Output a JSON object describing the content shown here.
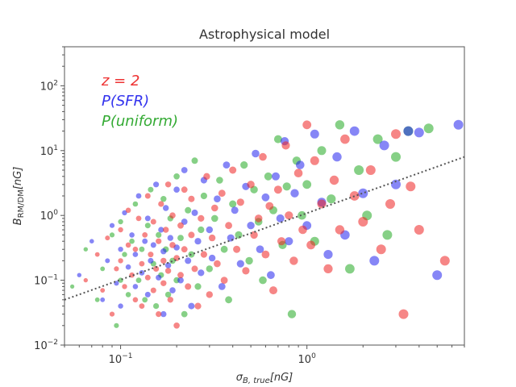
{
  "chart_data": {
    "type": "scatter",
    "title": "Astrophysical model",
    "xlabel_main": "σ",
    "xlabel_sub": "B, true",
    "xlabel_unit": "[nG]",
    "ylabel_main": "B",
    "ylabel_sub": "RM/DM",
    "ylabel_unit": "[nG]",
    "xscale": "log",
    "yscale": "log",
    "xlim": [
      0.05,
      7.0
    ],
    "ylim": [
      0.01,
      400
    ],
    "x_ticks": [
      {
        "value": 0.1,
        "base": "10",
        "exp": "−1"
      },
      {
        "value": 1,
        "base": "10",
        "exp": "0"
      }
    ],
    "y_ticks": [
      {
        "value": 0.01,
        "base": "10",
        "exp": "−2"
      },
      {
        "value": 0.1,
        "base": "10",
        "exp": "−1"
      },
      {
        "value": 1,
        "base": "10",
        "exp": "0"
      },
      {
        "value": 10,
        "base": "10",
        "exp": "1"
      },
      {
        "value": 100,
        "base": "10",
        "exp": "2"
      }
    ],
    "legend_placement": "top-left",
    "legend": [
      {
        "text": "z = 2",
        "color": "#ee3333"
      },
      {
        "text": "P(SFR)",
        "color": "#3333ee"
      },
      {
        "text": "P(uniform)",
        "color": "#33aa33"
      }
    ],
    "reference_line": {
      "style": "dotted",
      "color": "#555555",
      "points": [
        [
          0.05,
          0.05
        ],
        [
          7.0,
          8.0
        ]
      ]
    },
    "series": [
      {
        "color": "#ee2222",
        "points": [
          [
            0.065,
            0.1
          ],
          [
            0.075,
            0.25
          ],
          [
            0.08,
            0.07
          ],
          [
            0.085,
            0.45
          ],
          [
            0.09,
            0.03
          ],
          [
            0.095,
            0.15
          ],
          [
            0.1,
            0.6
          ],
          [
            0.1,
            0.2
          ],
          [
            0.105,
            0.08
          ],
          [
            0.11,
            0.35
          ],
          [
            0.11,
            1.2
          ],
          [
            0.115,
            0.12
          ],
          [
            0.12,
            0.05
          ],
          [
            0.12,
            0.3
          ],
          [
            0.125,
            0.9
          ],
          [
            0.13,
            0.18
          ],
          [
            0.13,
            0.04
          ],
          [
            0.135,
            0.5
          ],
          [
            0.14,
            0.11
          ],
          [
            0.14,
            2.0
          ],
          [
            0.145,
            0.25
          ],
          [
            0.15,
            0.07
          ],
          [
            0.15,
            0.8
          ],
          [
            0.155,
            0.15
          ],
          [
            0.16,
            0.4
          ],
          [
            0.16,
            0.03
          ],
          [
            0.165,
            1.5
          ],
          [
            0.17,
            0.2
          ],
          [
            0.17,
            0.09
          ],
          [
            0.175,
            0.6
          ],
          [
            0.18,
            3.0
          ],
          [
            0.18,
            0.14
          ],
          [
            0.185,
            0.05
          ],
          [
            0.19,
            0.35
          ],
          [
            0.19,
            1.0
          ],
          [
            0.2,
            0.22
          ],
          [
            0.2,
            0.02
          ],
          [
            0.21,
            0.7
          ],
          [
            0.21,
            0.12
          ],
          [
            0.22,
            2.5
          ],
          [
            0.22,
            0.3
          ],
          [
            0.23,
            0.08
          ],
          [
            0.24,
            0.5
          ],
          [
            0.24,
            1.8
          ],
          [
            0.25,
            0.15
          ],
          [
            0.26,
            0.04
          ],
          [
            0.27,
            0.9
          ],
          [
            0.28,
            0.25
          ],
          [
            0.29,
            4.0
          ],
          [
            0.3,
            0.06
          ],
          [
            0.31,
            0.45
          ],
          [
            0.32,
            1.3
          ],
          [
            0.33,
            0.18
          ],
          [
            0.35,
            2.2
          ],
          [
            0.36,
            0.1
          ],
          [
            0.38,
            0.7
          ],
          [
            0.4,
            5.0
          ],
          [
            0.42,
            0.3
          ],
          [
            0.44,
            1.6
          ],
          [
            0.47,
            0.14
          ],
          [
            0.5,
            3.0
          ],
          [
            0.52,
            0.5
          ],
          [
            0.55,
            0.9
          ],
          [
            0.58,
            8.0
          ],
          [
            0.6,
            0.25
          ],
          [
            0.63,
            1.4
          ],
          [
            0.66,
            0.07
          ],
          [
            0.7,
            2.5
          ],
          [
            0.73,
            0.4
          ],
          [
            0.77,
            12.0
          ],
          [
            0.8,
            1.0
          ],
          [
            0.85,
            0.2
          ],
          [
            0.9,
            4.5
          ],
          [
            0.95,
            0.6
          ],
          [
            1.0,
            25.0
          ],
          [
            1.05,
            0.35
          ],
          [
            1.1,
            7.0
          ],
          [
            1.2,
            1.5
          ],
          [
            1.3,
            0.15
          ],
          [
            1.4,
            3.5
          ],
          [
            1.5,
            0.6
          ],
          [
            1.6,
            15.0
          ],
          [
            1.8,
            2.0
          ],
          [
            2.0,
            0.8
          ],
          [
            2.2,
            5.0
          ],
          [
            2.5,
            0.3
          ],
          [
            2.8,
            1.5
          ],
          [
            3.0,
            18.0
          ],
          [
            3.3,
            0.03
          ],
          [
            3.6,
            2.8
          ],
          [
            4.0,
            0.6
          ],
          [
            5.5,
            0.2
          ]
        ]
      },
      {
        "color": "#2222ee",
        "points": [
          [
            0.06,
            0.12
          ],
          [
            0.07,
            0.4
          ],
          [
            0.08,
            0.05
          ],
          [
            0.085,
            0.2
          ],
          [
            0.09,
            0.7
          ],
          [
            0.095,
            0.09
          ],
          [
            0.1,
            0.3
          ],
          [
            0.1,
            0.04
          ],
          [
            0.105,
            1.1
          ],
          [
            0.11,
            0.16
          ],
          [
            0.115,
            0.5
          ],
          [
            0.12,
            0.08
          ],
          [
            0.12,
            0.25
          ],
          [
            0.125,
            2.0
          ],
          [
            0.13,
            0.13
          ],
          [
            0.135,
            0.4
          ],
          [
            0.14,
            0.06
          ],
          [
            0.14,
            0.9
          ],
          [
            0.145,
            0.2
          ],
          [
            0.15,
            0.35
          ],
          [
            0.155,
            3.0
          ],
          [
            0.16,
            0.11
          ],
          [
            0.165,
            0.6
          ],
          [
            0.17,
            0.03
          ],
          [
            0.17,
            0.28
          ],
          [
            0.175,
            1.3
          ],
          [
            0.18,
            0.17
          ],
          [
            0.185,
            0.45
          ],
          [
            0.19,
            0.07
          ],
          [
            0.2,
            2.5
          ],
          [
            0.2,
            0.32
          ],
          [
            0.21,
            0.1
          ],
          [
            0.22,
            0.8
          ],
          [
            0.22,
            5.0
          ],
          [
            0.23,
            0.2
          ],
          [
            0.24,
            0.04
          ],
          [
            0.25,
            1.1
          ],
          [
            0.26,
            0.4
          ],
          [
            0.27,
            0.13
          ],
          [
            0.28,
            3.5
          ],
          [
            0.3,
            0.6
          ],
          [
            0.31,
            0.22
          ],
          [
            0.33,
            1.8
          ],
          [
            0.35,
            0.08
          ],
          [
            0.37,
            6.0
          ],
          [
            0.39,
            0.45
          ],
          [
            0.41,
            1.2
          ],
          [
            0.44,
            0.18
          ],
          [
            0.47,
            2.8
          ],
          [
            0.5,
            0.7
          ],
          [
            0.53,
            9.0
          ],
          [
            0.56,
            0.3
          ],
          [
            0.6,
            1.9
          ],
          [
            0.64,
            0.12
          ],
          [
            0.68,
            4.0
          ],
          [
            0.72,
            0.9
          ],
          [
            0.76,
            14.0
          ],
          [
            0.8,
            0.4
          ],
          [
            0.86,
            2.2
          ],
          [
            0.92,
            6.0
          ],
          [
            1.0,
            0.7
          ],
          [
            1.1,
            18.0
          ],
          [
            1.2,
            1.6
          ],
          [
            1.3,
            0.25
          ],
          [
            1.45,
            8.0
          ],
          [
            1.6,
            0.5
          ],
          [
            1.8,
            20.0
          ],
          [
            2.0,
            2.2
          ],
          [
            2.3,
            0.2
          ],
          [
            2.6,
            12.0
          ],
          [
            3.0,
            3.0
          ],
          [
            3.5,
            20.0
          ],
          [
            4.0,
            19.0
          ],
          [
            5.0,
            0.12
          ],
          [
            6.5,
            25.0
          ]
        ]
      },
      {
        "color": "#22aa22",
        "points": [
          [
            0.055,
            0.08
          ],
          [
            0.065,
            0.3
          ],
          [
            0.075,
            0.05
          ],
          [
            0.08,
            0.15
          ],
          [
            0.09,
            0.5
          ],
          [
            0.095,
            0.02
          ],
          [
            0.1,
            0.1
          ],
          [
            0.1,
            0.8
          ],
          [
            0.105,
            0.25
          ],
          [
            0.11,
            0.06
          ],
          [
            0.115,
            0.4
          ],
          [
            0.12,
            1.5
          ],
          [
            0.125,
            0.1
          ],
          [
            0.13,
            0.3
          ],
          [
            0.135,
            0.05
          ],
          [
            0.14,
            0.7
          ],
          [
            0.145,
            2.5
          ],
          [
            0.15,
            0.18
          ],
          [
            0.155,
            0.04
          ],
          [
            0.16,
            0.5
          ],
          [
            0.165,
            0.12
          ],
          [
            0.17,
            1.8
          ],
          [
            0.175,
            0.3
          ],
          [
            0.18,
            0.06
          ],
          [
            0.185,
            0.9
          ],
          [
            0.19,
            0.2
          ],
          [
            0.2,
            4.0
          ],
          [
            0.2,
            0.1
          ],
          [
            0.21,
            0.45
          ],
          [
            0.22,
            0.03
          ],
          [
            0.23,
            1.2
          ],
          [
            0.24,
            0.25
          ],
          [
            0.25,
            7.0
          ],
          [
            0.26,
            0.08
          ],
          [
            0.27,
            0.6
          ],
          [
            0.28,
            2.0
          ],
          [
            0.3,
            0.15
          ],
          [
            0.32,
            0.9
          ],
          [
            0.34,
            3.5
          ],
          [
            0.36,
            0.3
          ],
          [
            0.38,
            0.05
          ],
          [
            0.4,
            1.5
          ],
          [
            0.43,
            0.5
          ],
          [
            0.46,
            6.0
          ],
          [
            0.49,
            0.2
          ],
          [
            0.52,
            2.5
          ],
          [
            0.55,
            0.8
          ],
          [
            0.58,
            0.1
          ],
          [
            0.62,
            4.0
          ],
          [
            0.66,
            1.2
          ],
          [
            0.7,
            15.0
          ],
          [
            0.74,
            0.35
          ],
          [
            0.78,
            2.8
          ],
          [
            0.83,
            0.03
          ],
          [
            0.88,
            7.0
          ],
          [
            0.94,
            1.0
          ],
          [
            1.0,
            3.0
          ],
          [
            1.1,
            0.4
          ],
          [
            1.2,
            10.0
          ],
          [
            1.35,
            1.8
          ],
          [
            1.5,
            25.0
          ],
          [
            1.7,
            0.15
          ],
          [
            1.9,
            5.0
          ],
          [
            2.1,
            1.0
          ],
          [
            2.4,
            15.0
          ],
          [
            2.7,
            0.5
          ],
          [
            3.0,
            8.0
          ],
          [
            3.5,
            20.0
          ],
          [
            4.5,
            22.0
          ]
        ]
      }
    ]
  }
}
